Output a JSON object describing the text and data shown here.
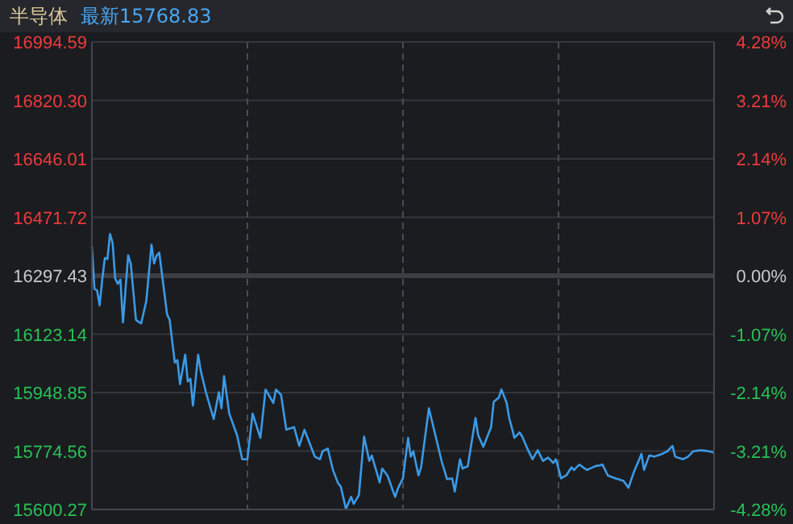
{
  "chart_data": {
    "type": "line",
    "title": "半导体",
    "subtitle": "最新15768.83",
    "categories": [
      null,
      null,
      null,
      null,
      null,
      null,
      null,
      null,
      null,
      null,
      null,
      null,
      null,
      null,
      null,
      null,
      null,
      null,
      null,
      null,
      null,
      null,
      null,
      null,
      null,
      null,
      null,
      null,
      null,
      null,
      null,
      null,
      null,
      null,
      null,
      null,
      null,
      null,
      null,
      null,
      null,
      null,
      null,
      null,
      null,
      null,
      null,
      null,
      null,
      null,
      null,
      null,
      null,
      null,
      null,
      null,
      null,
      null,
      null,
      null,
      null,
      null,
      null,
      null,
      null,
      null,
      null,
      null,
      null,
      null,
      null,
      null,
      null,
      null,
      null,
      null,
      null,
      null,
      null,
      null,
      null,
      null,
      null,
      null,
      null,
      null,
      null,
      null,
      null,
      null,
      null,
      null,
      null,
      null,
      null,
      null,
      null,
      null,
      null,
      null,
      null,
      null,
      null,
      null,
      null,
      null,
      null,
      null,
      null,
      null,
      null,
      null,
      null,
      null,
      null,
      null,
      null,
      null,
      null,
      null,
      null,
      null,
      null,
      null,
      null,
      null,
      null,
      null,
      null,
      null,
      null,
      null,
      null,
      null,
      null,
      null,
      null,
      null,
      null,
      null,
      null,
      null,
      null,
      null,
      null,
      null,
      null,
      null,
      null,
      null,
      null,
      null,
      null,
      null,
      null,
      null,
      null,
      null,
      null,
      null,
      null,
      null,
      null,
      null,
      null,
      null,
      null,
      null,
      null,
      null,
      null,
      null,
      null,
      null,
      null,
      null,
      null,
      null,
      null,
      null,
      null,
      null,
      null,
      null,
      null,
      null,
      null,
      null,
      null,
      null,
      null,
      null,
      null,
      null,
      null,
      null,
      null,
      null,
      null,
      null,
      null,
      null,
      null,
      null,
      null,
      null,
      null,
      null,
      null,
      null,
      null,
      null,
      null,
      null,
      null,
      null,
      null,
      null,
      null,
      null,
      null,
      null,
      null,
      null,
      null,
      null,
      null,
      null,
      null,
      null,
      null,
      null,
      null,
      null,
      null,
      null,
      null,
      null,
      null,
      null,
      null
    ],
    "series": [
      {
        "color": "#3b9ae6",
        "values": [
          16385,
          16258,
          16254,
          16209,
          16286,
          16350,
          16347,
          16422,
          16395,
          16289,
          16273,
          16286,
          16158,
          16258,
          16358,
          16334,
          16250,
          16166,
          16160,
          16155,
          16188,
          16222,
          16306,
          16390,
          16334,
          16358,
          16366,
          16305,
          16244,
          16182,
          16166,
          16102,
          16038,
          16046,
          15974,
          16018,
          16062,
          15982,
          15990,
          15910,
          15986,
          16062,
          16014,
          15982,
          15950,
          15923,
          15897,
          15870,
          15910,
          15950,
          15902,
          15998,
          15942,
          15886,
          15865,
          15843,
          15822,
          15786,
          15750,
          15750,
          15750,
          15818,
          15886,
          15862,
          15838,
          15814,
          15886,
          15958,
          15945,
          15931,
          15918,
          15958,
          15950,
          15942,
          15890,
          15838,
          15841,
          15843,
          15846,
          15818,
          15790,
          15814,
          15838,
          15818,
          15798,
          15778,
          15758,
          15754,
          15750,
          15774,
          15778,
          15782,
          15750,
          15718,
          15698,
          15678,
          15669,
          15636,
          15602,
          15620,
          15638,
          15617,
          15630,
          15643,
          15731,
          15818,
          15782,
          15745,
          15761,
          15734,
          15708,
          15681,
          15722,
          15712,
          15702,
          15681,
          15659,
          15638,
          15662,
          15678,
          15693,
          15754,
          15814,
          15758,
          15774,
          15738,
          15702,
          15726,
          15785,
          15843,
          15902,
          15870,
          15838,
          15806,
          15774,
          15742,
          15717,
          15691,
          15692,
          15693,
          15654,
          15702,
          15750,
          15722,
          15726,
          15729,
          15777,
          15825,
          15873,
          15822,
          15805,
          15787,
          15807,
          15826,
          15846,
          15921,
          15928,
          15934,
          15958,
          15938,
          15918,
          15873,
          15844,
          15814,
          15822,
          15830,
          15818,
          15800,
          15782,
          15766,
          15750,
          15764,
          15777,
          15761,
          15745,
          15750,
          15755,
          15747,
          15739,
          15750,
          15722,
          15693,
          15698,
          15702,
          15714,
          15726,
          15718,
          15726,
          15734,
          15729,
          15723,
          15718,
          15722,
          15725,
          15729,
          15731,
          15732,
          15734,
          15718,
          15702,
          15699,
          15696,
          15693,
          15691,
          15688,
          15686,
          15676,
          15665,
          15688,
          15710,
          15729,
          15747,
          15766,
          15718,
          15740,
          15761,
          15760,
          15758,
          15761,
          15763,
          15766,
          15770,
          15774,
          15782,
          15790,
          15758,
          15755,
          15753,
          15750,
          15754,
          15758,
          15766,
          15774,
          15775,
          15776,
          15777,
          15776,
          15775,
          15774,
          15772,
          15769
        ]
      }
    ],
    "ylim": [
      15600.27,
      16994.59
    ],
    "yticks": [
      {
        "value": 15600.27,
        "label": "15600.27"
      },
      {
        "value": 15774.56,
        "label": "15774.56"
      },
      {
        "value": 15948.85,
        "label": "15948.85"
      },
      {
        "value": 16123.14,
        "label": "16123.14"
      },
      {
        "value": 16297.43,
        "label": "16297.43"
      },
      {
        "value": 16471.72,
        "label": "16471.72"
      },
      {
        "value": 16646.01,
        "label": "16646.01"
      },
      {
        "value": 16820.3,
        "label": "16820.30"
      },
      {
        "value": 16994.59,
        "label": "16994.59"
      }
    ],
    "y2lim": [
      -4.28,
      4.28
    ],
    "y2ticks": [
      {
        "value": -4.28,
        "label": "-4.28%"
      },
      {
        "value": -3.21,
        "label": "-3.21%"
      },
      {
        "value": -2.14,
        "label": "-2.14%"
      },
      {
        "value": -1.07,
        "label": "-1.07%"
      },
      {
        "value": 0,
        "label": "0.00%"
      },
      {
        "value": 1.07,
        "label": "1.07%"
      },
      {
        "value": 2.14,
        "label": "2.14%"
      },
      {
        "value": 3.21,
        "label": "3.21%"
      },
      {
        "value": 4.28,
        "label": "4.28%"
      }
    ],
    "ref_lines": [
      {
        "axis": "y",
        "value": 16297.43,
        "color": "#3c3e44"
      }
    ],
    "grid": true
  }
}
